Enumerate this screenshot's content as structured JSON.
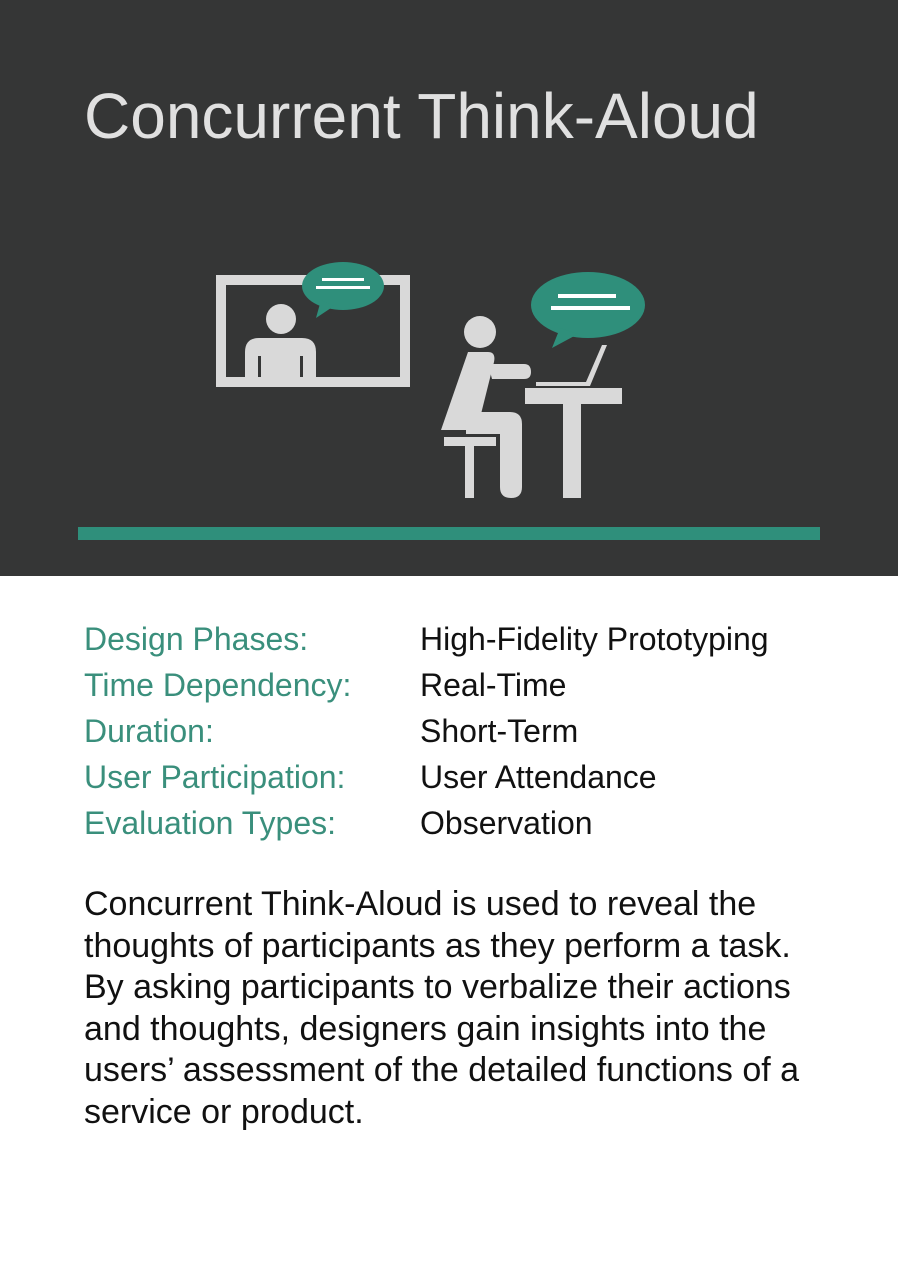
{
  "title": "Concurrent Think-Aloud",
  "colors": {
    "header_background": "#353636",
    "accent": "#2f8f7b",
    "label_text": "#3a8f7c",
    "icon_gray": "#d9d9d9"
  },
  "illustration": {
    "icons": [
      "observer-in-window-icon",
      "speech-bubble-icon",
      "seated-user-at-laptop-icon",
      "speech-bubble-icon"
    ]
  },
  "attributes": [
    {
      "label": "Design Phases:",
      "value": "High-Fidelity Prototyping"
    },
    {
      "label": "Time Dependency:",
      "value": "Real-Time"
    },
    {
      "label": "Duration:",
      "value": "Short-Term"
    },
    {
      "label": "User Participation:",
      "value": "User Attendance"
    },
    {
      "label": "Evaluation Types:",
      "value": "Observation"
    }
  ],
  "description": "Concurrent Think-Aloud is used to reveal the thoughts of participants as they perform a task. By asking participants to verbalize their actions and thoughts, designers gain insights into the users’ assessment of the detailed functions of a service or product."
}
